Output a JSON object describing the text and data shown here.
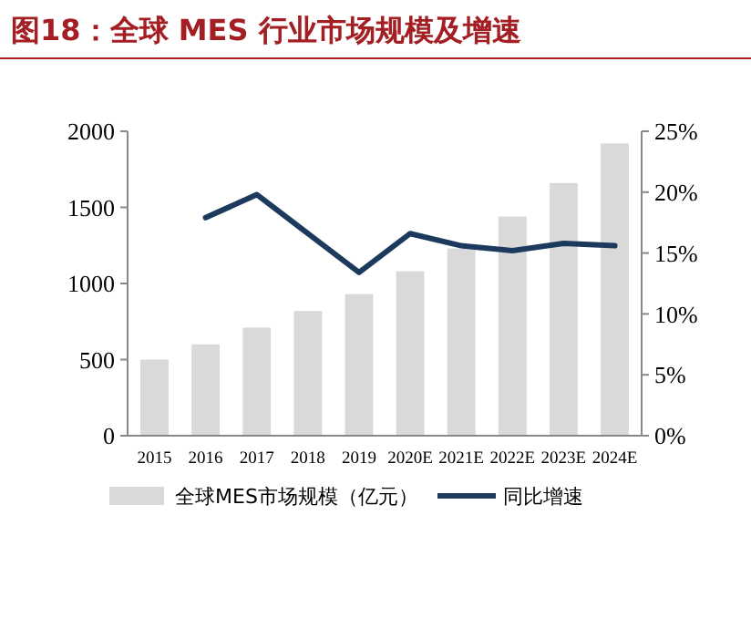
{
  "chart_data": {
    "type": "bar",
    "title": "图18：全球 MES 行业市场规模及增速",
    "categories": [
      "2015",
      "2016",
      "2017",
      "2018",
      "2019",
      "2020E",
      "2021E",
      "2022E",
      "2023E",
      "2024E"
    ],
    "series": [
      {
        "name": "全球MES市场规模（亿元）",
        "color": "#d9d9d9",
        "values": [
          500,
          600,
          710,
          820,
          930,
          1080,
          1230,
          1440,
          1660,
          1920
        ]
      },
      {
        "name": "同比增速",
        "type": "line",
        "axis": "y2",
        "color": "#1b3a5e",
        "values": [
          null,
          17.9,
          19.8,
          16.6,
          13.4,
          16.6,
          15.6,
          15.2,
          15.8,
          15.6
        ]
      }
    ],
    "ylim": [
      0,
      2000
    ],
    "yticks": [
      0,
      500,
      1000,
      1500,
      2000
    ],
    "y2lim": [
      0,
      25
    ],
    "y2ticks": [
      {
        "value": 0,
        "label": "0%"
      },
      {
        "value": 5,
        "label": "5%"
      },
      {
        "value": 10,
        "label": "10%"
      },
      {
        "value": 15,
        "label": "15%"
      },
      {
        "value": 20,
        "label": "20%"
      },
      {
        "value": 25,
        "label": "25%"
      }
    ],
    "legend": "bottom",
    "grid": false
  }
}
